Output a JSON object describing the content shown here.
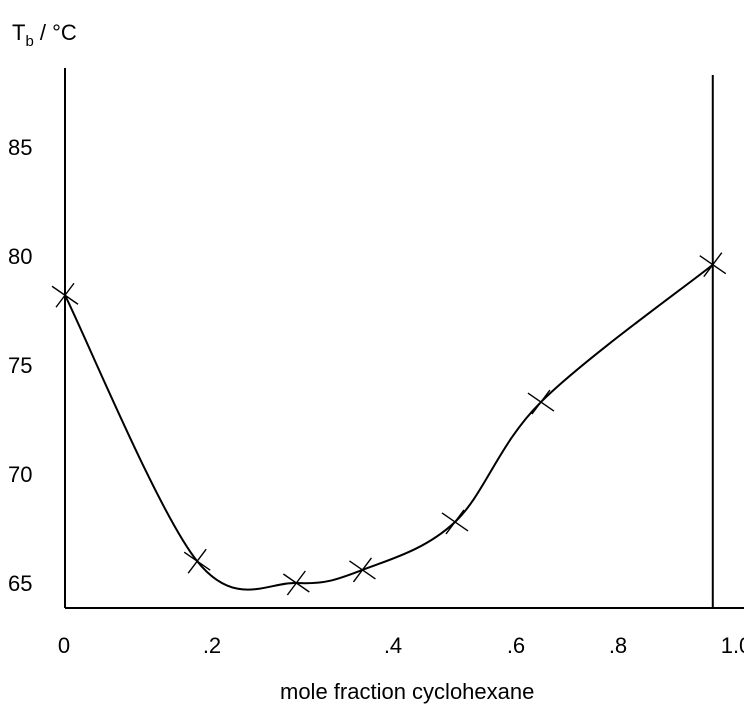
{
  "chart_data": {
    "type": "line",
    "title": "",
    "ylabel_main": "T",
    "ylabel_sub": "b",
    "ylabel_unit": " / °C",
    "xlabel": "mole fraction cyclohexane",
    "xlim": [
      0,
      1.0
    ],
    "ylim": [
      64,
      90
    ],
    "grid": false,
    "x_ticks": [
      {
        "value": 0,
        "label": "0"
      },
      {
        "value": 0.2,
        "label": ".2"
      },
      {
        "value": 0.4,
        "label": ".4"
      },
      {
        "value": 0.6,
        "label": ".6"
      },
      {
        "value": 0.8,
        "label": ".8"
      },
      {
        "value": 1.0,
        "label": "1.0"
      }
    ],
    "y_ticks": [
      {
        "value": 65,
        "label": "65"
      },
      {
        "value": 70,
        "label": "70"
      },
      {
        "value": 75,
        "label": "75"
      },
      {
        "value": 80,
        "label": "80"
      },
      {
        "value": 85,
        "label": "85"
      }
    ],
    "vertical_line_x": 0.98,
    "series": [
      {
        "marker": "cross",
        "color": "#000000",
        "points": [
          {
            "x": 0.0,
            "y": 78.2
          },
          {
            "x": 0.2,
            "y": 66.0
          },
          {
            "x": 0.35,
            "y": 65.0
          },
          {
            "x": 0.45,
            "y": 65.6
          },
          {
            "x": 0.59,
            "y": 67.8
          },
          {
            "x": 0.72,
            "y": 73.3
          },
          {
            "x": 0.98,
            "y": 79.6
          }
        ]
      }
    ]
  }
}
